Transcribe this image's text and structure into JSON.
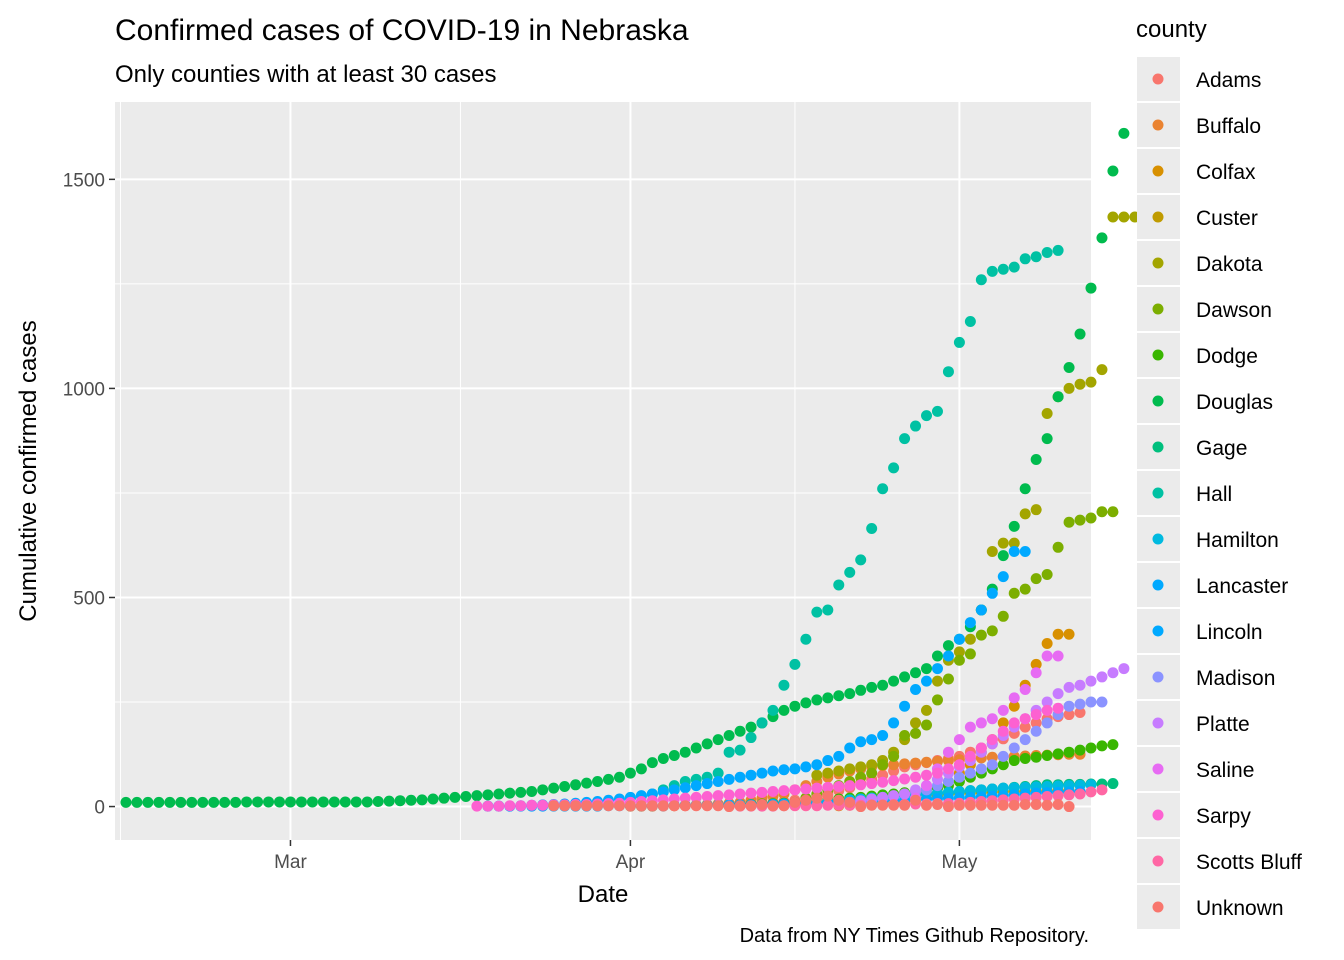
{
  "chart_data": {
    "type": "scatter",
    "title": "Confirmed cases of COVID-19 in Nebraska",
    "subtitle": "Only counties with at least 30 cases",
    "xlabel": "Date",
    "ylabel": "Cumulative confirmed cases",
    "caption": "Data from NY Times Github Repository.",
    "x_ticks": [
      {
        "label": "Mar",
        "date": "2020-03-01"
      },
      {
        "label": "Apr",
        "date": "2020-04-01"
      },
      {
        "label": "May",
        "date": "2020-05-01"
      }
    ],
    "y_ticks": [
      0,
      500,
      1000,
      1500
    ],
    "xlim": [
      "2020-02-14",
      "2020-05-13"
    ],
    "ylim": [
      -80,
      1685
    ],
    "grid": true,
    "legend_title": "county",
    "legend_position": "right",
    "series": [
      {
        "name": "Adams",
        "color": "#F8766D",
        "start": "2020-04-01",
        "values": [
          1,
          1,
          1,
          1,
          2,
          2,
          3,
          3,
          4,
          5,
          6,
          7,
          8,
          10,
          12,
          15,
          20,
          25,
          30,
          38,
          45,
          55,
          65,
          75,
          85,
          95,
          100,
          105,
          110,
          115,
          120,
          130,
          140,
          150,
          162,
          175,
          190,
          200,
          210,
          215,
          220,
          225
        ]
      },
      {
        "name": "Buffalo",
        "color": "#EA8331",
        "start": "2020-04-01",
        "values": [
          1,
          1,
          1,
          2,
          2,
          3,
          4,
          5,
          6,
          8,
          10,
          15,
          20,
          25,
          30,
          40,
          50,
          60,
          70,
          78,
          85,
          90,
          95,
          98,
          100,
          102,
          104,
          106,
          108,
          110,
          112,
          114,
          116,
          118,
          119,
          120,
          121,
          122,
          123,
          124,
          125,
          125
        ]
      },
      {
        "name": "Colfax",
        "color": "#D89000",
        "start": "2020-04-20",
        "values": [
          2,
          3,
          5,
          8,
          10,
          12,
          15,
          20,
          30,
          45,
          60,
          80,
          100,
          130,
          160,
          200,
          240,
          290,
          340,
          390,
          412,
          412
        ]
      },
      {
        "name": "Custer",
        "color": "#C09B00",
        "start": "2020-04-25",
        "values": [
          5,
          10,
          15,
          20,
          25,
          30,
          32,
          33,
          34,
          35,
          36,
          36,
          36,
          37,
          37,
          38,
          38
        ]
      },
      {
        "name": "Dakota",
        "color": "#A3A500",
        "start": "2020-04-18",
        "values": [
          75,
          80,
          85,
          90,
          95,
          100,
          110,
          130,
          160,
          200,
          230,
          300,
          350,
          370,
          400,
          470,
          610,
          630,
          630,
          700,
          710,
          940,
          980,
          1000,
          1010,
          1015,
          1045,
          1410,
          1410,
          1410
        ]
      },
      {
        "name": "Dawson",
        "color": "#7CAE00",
        "start": "2020-04-15",
        "values": [
          5,
          10,
          20,
          30,
          40,
          50,
          60,
          70,
          80,
          100,
          120,
          170,
          175,
          195,
          255,
          305,
          350,
          365,
          410,
          420,
          455,
          510,
          520,
          545,
          555,
          620,
          680,
          685,
          690,
          705,
          705
        ]
      },
      {
        "name": "Dodge",
        "color": "#39B600",
        "start": "2020-04-10",
        "values": [
          3,
          4,
          5,
          6,
          7,
          8,
          9,
          10,
          12,
          15,
          18,
          20,
          22,
          25,
          28,
          30,
          33,
          36,
          40,
          45,
          50,
          60,
          70,
          80,
          90,
          100,
          110,
          115,
          118,
          122,
          126,
          130,
          135,
          140,
          145,
          148
        ]
      },
      {
        "name": "Douglas",
        "color": "#00BB4E",
        "start": "2020-02-15",
        "values": [
          10,
          10,
          10,
          10,
          10,
          10,
          10,
          10,
          10,
          10,
          10,
          11,
          11,
          11,
          11,
          11,
          11,
          11,
          11,
          11,
          11,
          11,
          11,
          12,
          13,
          14,
          15,
          16,
          18,
          20,
          22,
          24,
          26,
          28,
          30,
          32,
          34,
          36,
          40,
          44,
          48,
          52,
          56,
          60,
          65,
          70,
          80,
          90,
          105,
          115,
          122,
          130,
          140,
          150,
          160,
          170,
          180,
          190,
          200,
          215,
          230,
          240,
          248,
          255,
          260,
          265,
          270,
          278,
          285,
          290,
          300,
          310,
          320,
          330,
          360,
          385,
          400,
          430,
          470,
          520,
          600,
          670,
          760,
          830,
          880,
          980,
          1050,
          1130,
          1240,
          1360,
          1520,
          1610
        ]
      },
      {
        "name": "Gage",
        "color": "#00BF7D",
        "start": "2020-04-10",
        "values": [
          2,
          3,
          4,
          5,
          6,
          7,
          8,
          9,
          10,
          12,
          14,
          16,
          18,
          20,
          22,
          24,
          26,
          28,
          30,
          32,
          34,
          36,
          38,
          40,
          42,
          44,
          46,
          48,
          50,
          52,
          52,
          53,
          53,
          54,
          54,
          55
        ]
      },
      {
        "name": "Hall",
        "color": "#00C1A3",
        "start": "2020-04-01",
        "values": [
          20,
          25,
          30,
          40,
          50,
          60,
          65,
          70,
          80,
          130,
          135,
          165,
          200,
          230,
          290,
          340,
          400,
          465,
          470,
          530,
          560,
          590,
          665,
          760,
          810,
          880,
          910,
          935,
          945,
          1040,
          1110,
          1160,
          1260,
          1280,
          1285,
          1290,
          1310,
          1315,
          1325,
          1330
        ]
      },
      {
        "name": "Hamilton",
        "color": "#00BAE0",
        "start": "2020-04-12",
        "values": [
          2,
          3,
          4,
          5,
          6,
          8,
          10,
          12,
          14,
          16,
          18,
          20,
          22,
          24,
          26,
          28,
          30,
          32,
          34,
          36,
          38,
          40,
          42,
          44,
          45,
          46,
          47,
          48,
          49,
          50,
          51,
          52
        ]
      },
      {
        "name": "Lancaster",
        "color": "#00A9FF",
        "start": "2020-03-19",
        "values": [
          1,
          1,
          1,
          2,
          3,
          4,
          5,
          6,
          8,
          10,
          12,
          15,
          18,
          22,
          26,
          30,
          35,
          40,
          45,
          50,
          55,
          60,
          65,
          70,
          75,
          80,
          85,
          88,
          90,
          95,
          100,
          110,
          120,
          140,
          155,
          160,
          170,
          200,
          240,
          280,
          300,
          330,
          360,
          400,
          440,
          470,
          510,
          550,
          610,
          610
        ]
      },
      {
        "name": "Lincoln",
        "color": "#00A9FF",
        "start": "2020-03-19",
        "values": [
          1,
          1,
          1,
          1,
          1,
          1,
          1,
          1,
          1,
          1,
          1,
          2,
          2,
          2,
          2,
          2,
          2,
          3,
          3,
          3,
          3,
          3,
          4,
          4,
          4,
          5,
          5,
          6,
          6,
          7,
          8,
          9,
          10,
          11,
          12,
          13,
          14,
          15,
          16,
          17,
          18,
          19,
          20,
          21,
          22,
          23,
          25,
          26,
          28,
          30,
          32,
          33,
          34,
          35,
          36
        ]
      },
      {
        "name": "Madison",
        "color": "#8B93FF",
        "start": "2020-04-20",
        "values": [
          5,
          8,
          10,
          15,
          20,
          25,
          30,
          35,
          40,
          50,
          60,
          70,
          80,
          90,
          100,
          120,
          140,
          160,
          180,
          200,
          220,
          240,
          245,
          250,
          250
        ]
      },
      {
        "name": "Platte",
        "color": "#C77CFF",
        "start": "2020-04-20",
        "values": [
          8,
          10,
          14,
          18,
          22,
          26,
          30,
          40,
          50,
          65,
          80,
          95,
          110,
          130,
          150,
          170,
          190,
          210,
          230,
          250,
          270,
          285,
          290,
          300,
          310,
          320,
          330
        ]
      },
      {
        "name": "Saline",
        "color": "#E76BF3",
        "start": "2020-04-26",
        "values": [
          5,
          20,
          50,
          90,
          130,
          160,
          190,
          200,
          210,
          230,
          260,
          280,
          320,
          360,
          360
        ]
      },
      {
        "name": "Sarpy",
        "color": "#FD61D1",
        "start": "2020-03-18",
        "values": [
          1,
          1,
          1,
          2,
          2,
          3,
          3,
          4,
          4,
          5,
          5,
          6,
          7,
          8,
          10,
          12,
          14,
          16,
          18,
          20,
          22,
          24,
          26,
          28,
          30,
          32,
          34,
          36,
          38,
          40,
          42,
          44,
          46,
          48,
          50,
          52,
          55,
          58,
          62,
          66,
          70,
          75,
          80,
          90,
          100,
          120,
          140,
          160,
          180,
          200,
          210,
          220,
          230,
          235
        ]
      },
      {
        "name": "Scotts Bluff",
        "color": "#FF67A4",
        "start": "2020-04-11",
        "values": [
          1,
          1,
          1,
          1,
          2,
          2,
          2,
          2,
          3,
          3,
          3,
          3,
          4,
          4,
          5,
          5,
          6,
          6,
          7,
          7,
          8,
          10,
          12,
          14,
          16,
          18,
          20,
          22,
          24,
          26,
          28,
          30,
          35,
          40
        ]
      },
      {
        "name": "Unknown",
        "color": "#F8766D",
        "start": "2020-03-25",
        "values": [
          2,
          2,
          2,
          2,
          2,
          2,
          2,
          2,
          2,
          2,
          2,
          2,
          2,
          2,
          2,
          2,
          0,
          2,
          2,
          5,
          2,
          2,
          10,
          15,
          20,
          25,
          15,
          10,
          0,
          3,
          3,
          3,
          3,
          15,
          3,
          5,
          0,
          3,
          3,
          3,
          3,
          3,
          3,
          5,
          5,
          3,
          5,
          0
        ]
      }
    ]
  }
}
